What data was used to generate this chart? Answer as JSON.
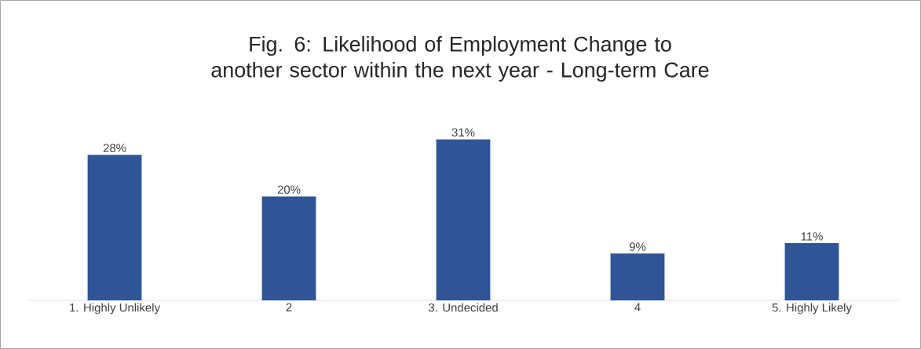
{
  "chart_data": {
    "type": "bar",
    "title": "Fig. 6: Likelihood of Employment Change to another sector within the next year - Long-term Care",
    "categories": [
      "1. Highly Unlikely",
      "2",
      "3. Undecided",
      "4",
      "5. Highly Likely"
    ],
    "values": [
      28,
      20,
      31,
      9,
      11
    ],
    "value_labels": [
      "28%",
      "20%",
      "31%",
      "9%",
      "11%"
    ],
    "color": "#2f5597"
  }
}
